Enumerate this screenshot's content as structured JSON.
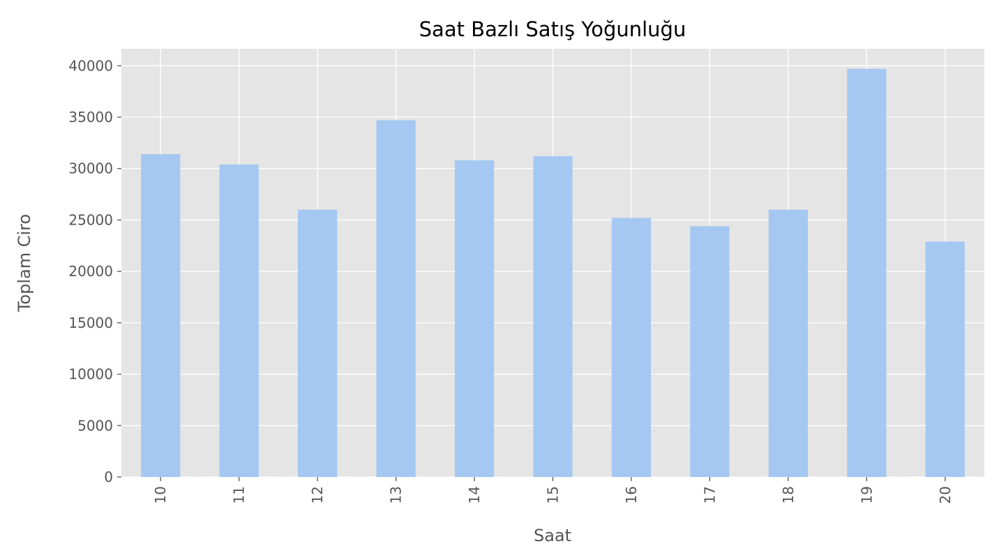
{
  "chart_data": {
    "type": "bar",
    "title": "Saat Bazlı Satış Yoğunluğu",
    "xlabel": "Saat",
    "ylabel": "Toplam Ciro",
    "categories": [
      "10",
      "11",
      "12",
      "13",
      "14",
      "15",
      "16",
      "17",
      "18",
      "19",
      "20"
    ],
    "values": [
      31400,
      30400,
      26000,
      34700,
      30800,
      31200,
      25200,
      24400,
      26000,
      39700,
      22900
    ],
    "ylim": [
      0,
      41650
    ],
    "yticks": [
      0,
      5000,
      10000,
      15000,
      20000,
      25000,
      30000,
      35000,
      40000
    ],
    "grid": true,
    "bar_color": "#a4c8f2",
    "plot_background": "#e5e5e5",
    "grid_color": "#ffffff"
  }
}
